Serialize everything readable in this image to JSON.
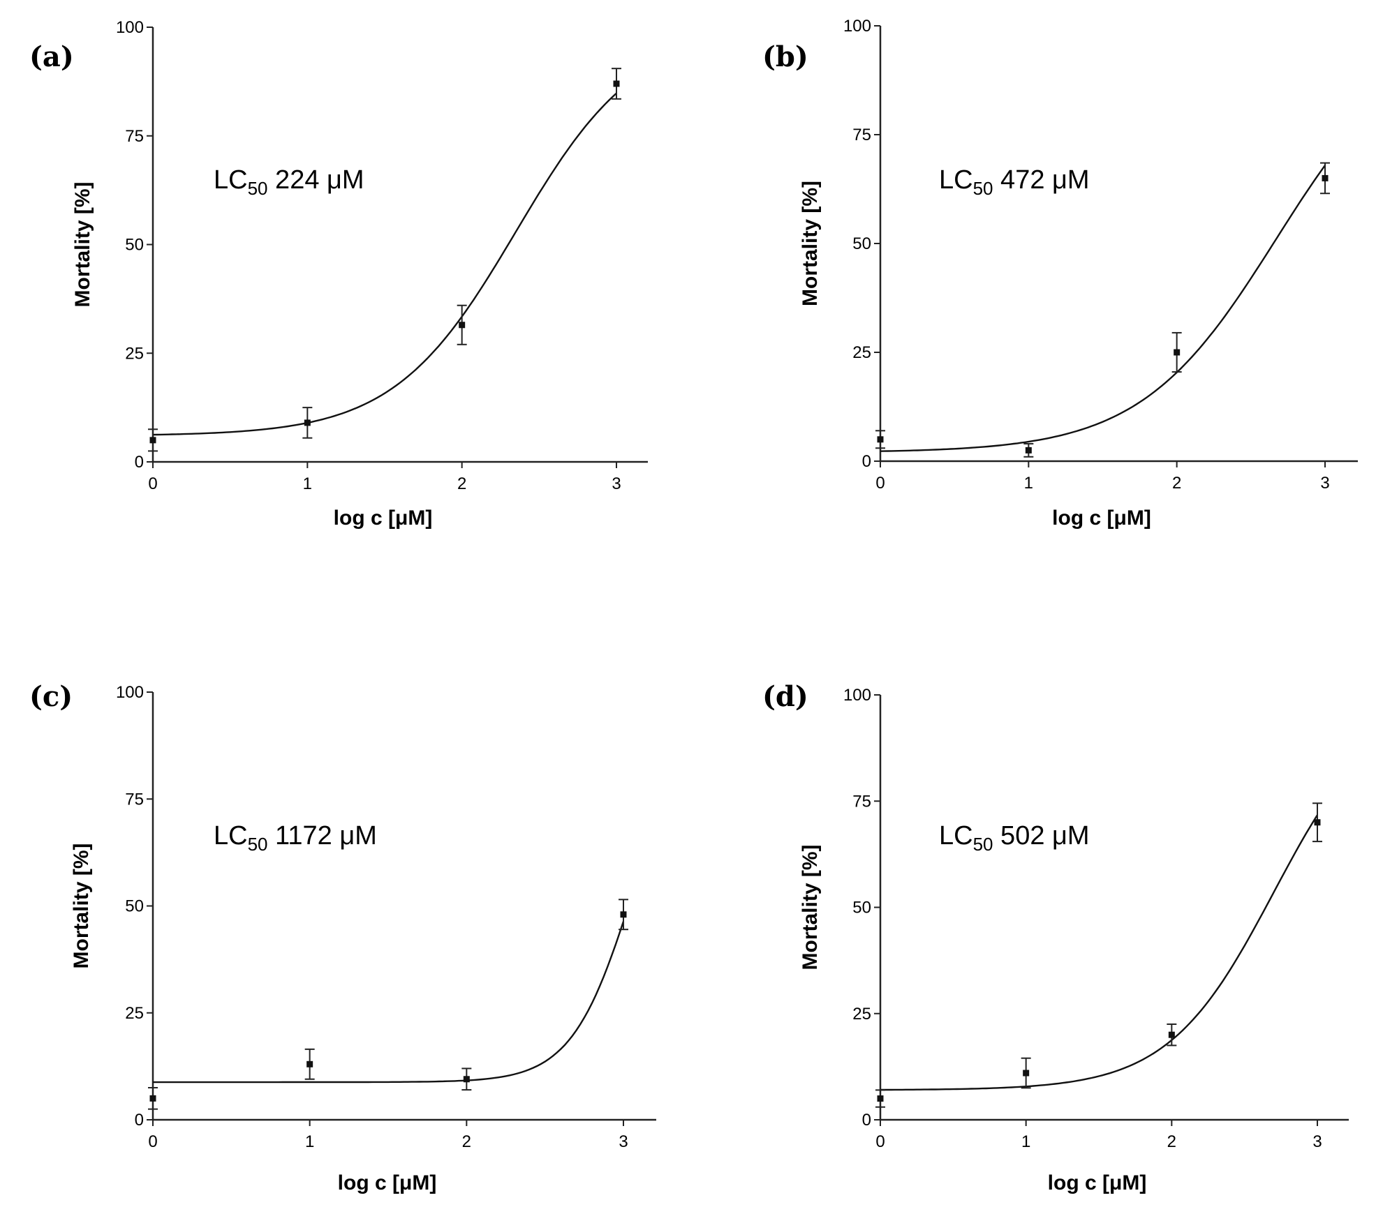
{
  "chart_data": [
    {
      "type": "line",
      "panel": "(a)",
      "title": "",
      "xlabel": "log c [μM]",
      "ylabel": "Mortality [%]",
      "xlim": [
        0,
        3.2
      ],
      "ylim": [
        0,
        100
      ],
      "xticks": [
        "0",
        "1",
        "2",
        "3"
      ],
      "yticks": [
        "0",
        "25",
        "50",
        "75",
        "100"
      ],
      "annotation": {
        "prefix": "LC",
        "sub": "50",
        "suffix": " 224 μM"
      },
      "points": [
        {
          "x": 0,
          "y": 5,
          "err": 2.5
        },
        {
          "x": 1,
          "y": 9,
          "err": 3.5
        },
        {
          "x": 2,
          "y": 31.5,
          "err": 4.5
        },
        {
          "x": 3,
          "y": 87,
          "err": 3.5
        }
      ],
      "fit": {
        "bottom": 6,
        "top": 100,
        "log_lc50": 2.35,
        "hill": 1.1
      }
    },
    {
      "type": "line",
      "panel": "(b)",
      "title": "",
      "xlabel": "log c [μM]",
      "ylabel": "Mortality [%]",
      "xlim": [
        0,
        3.2
      ],
      "ylim": [
        0,
        100
      ],
      "xticks": [
        "0",
        "1",
        "2",
        "3"
      ],
      "yticks": [
        "0",
        "25",
        "50",
        "75",
        "100"
      ],
      "annotation": {
        "prefix": "LC",
        "sub": "50",
        "suffix": " 472 μM"
      },
      "points": [
        {
          "x": 0,
          "y": 5,
          "err": 2
        },
        {
          "x": 1,
          "y": 2.5,
          "err": 1.5
        },
        {
          "x": 2,
          "y": 25,
          "err": 4.5
        },
        {
          "x": 3,
          "y": 65,
          "err": 3.5
        }
      ],
      "fit": {
        "bottom": 2,
        "top": 100,
        "log_lc50": 2.67,
        "hill": 0.95
      }
    },
    {
      "type": "line",
      "panel": "(c)",
      "title": "",
      "xlabel": "log c [μM]",
      "ylabel": "Mortality [%]",
      "xlim": [
        0,
        3.2
      ],
      "ylim": [
        0,
        100
      ],
      "xticks": [
        "0",
        "1",
        "2",
        "3"
      ],
      "yticks": [
        "0",
        "25",
        "50",
        "75",
        "100"
      ],
      "annotation": {
        "prefix": "LC",
        "sub": "50",
        "suffix": " 1172 μM"
      },
      "points": [
        {
          "x": 0,
          "y": 5,
          "err": 2.5
        },
        {
          "x": 1,
          "y": 13,
          "err": 3.5
        },
        {
          "x": 2,
          "y": 9.5,
          "err": 2.5
        },
        {
          "x": 3,
          "y": 48,
          "err": 3.5
        }
      ],
      "fit": {
        "bottom": 8.8,
        "top": 100,
        "log_lc50": 3.07,
        "hill": 2.2
      }
    },
    {
      "type": "line",
      "panel": "(d)",
      "title": "",
      "xlabel": "log c [μM]",
      "ylabel": "Mortality [%]",
      "xlim": [
        0,
        3.2
      ],
      "ylim": [
        0,
        100
      ],
      "xticks": [
        "0",
        "1",
        "2",
        "3"
      ],
      "yticks": [
        "0",
        "25",
        "50",
        "75",
        "100"
      ],
      "annotation": {
        "prefix": "LC",
        "sub": "50",
        "suffix": " 502 μM"
      },
      "points": [
        {
          "x": 0,
          "y": 5,
          "err": 2
        },
        {
          "x": 1,
          "y": 11,
          "err": 3.5
        },
        {
          "x": 2,
          "y": 20,
          "err": 2.5
        },
        {
          "x": 3,
          "y": 70,
          "err": 4.5
        }
      ],
      "fit": {
        "bottom": 7,
        "top": 100,
        "log_lc50": 2.7,
        "hill": 1.2
      }
    }
  ]
}
